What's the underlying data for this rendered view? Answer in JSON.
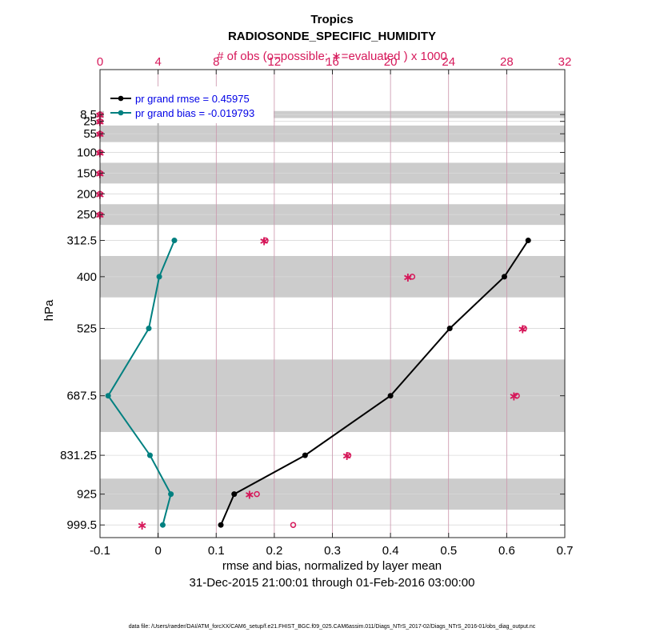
{
  "chart_data": {
    "type": "line",
    "title": "Tropics",
    "subtitle": "RADIOSONDE_SPECIFIC_HUMIDITY",
    "top_axis_label": "# of obs (o=possible; ∗=evaluated ) x 1000",
    "xlabel": "rmse and bias, normalized by layer mean",
    "date_range": "31-Dec-2015 21:00:01 through 01-Feb-2016 03:00:00",
    "ylabel": "hPa",
    "footer": "data file: /Users/raeder/DAI/ATM_forcXX/CAM6_setup/f.e21.FHIST_BGC.f09_025.CAM6assim.011/Diags_NTrS_2017-02/Diags_NTrS_2016-01/obs_diag_output.nc",
    "xlim": [
      -0.1,
      0.7
    ],
    "xticks": [
      -0.1,
      0,
      0.1,
      0.2,
      0.3,
      0.4,
      0.5,
      0.6,
      0.7
    ],
    "xtick_labels": [
      "-0.1",
      "0",
      "0.1",
      "0.2",
      "0.3",
      "0.4",
      "0.5",
      "0.6",
      "0.7"
    ],
    "top_xlim": [
      0,
      32
    ],
    "top_xticks": [
      0,
      4,
      8,
      12,
      16,
      20,
      24,
      28,
      32
    ],
    "top_xtick_labels": [
      "0",
      "4",
      "8",
      "12",
      "16",
      "20",
      "24",
      "28",
      "32"
    ],
    "ylim": [
      1030,
      -100
    ],
    "levels": [
      8.5,
      25,
      55,
      100,
      150,
      200,
      250,
      312.5,
      400,
      525,
      687.5,
      831.25,
      925,
      999.5
    ],
    "level_labels": [
      "8.5",
      "25",
      "55",
      "100",
      "150",
      "200",
      "250",
      "312.5",
      "400",
      "525",
      "687.5",
      "831.25",
      "925",
      "999.5"
    ],
    "shaded_bands": [
      [
        0,
        17
      ],
      [
        35,
        75
      ],
      [
        125,
        175
      ],
      [
        225,
        275
      ],
      [
        350,
        450
      ],
      [
        600,
        775
      ],
      [
        887.5,
        962.5
      ]
    ],
    "series": [
      {
        "name": "pr grand rmse = 0.45975",
        "color": "#000000",
        "points": [
          [
            0.637,
            312.5
          ],
          [
            0.596,
            400
          ],
          [
            0.502,
            525
          ],
          [
            0.4,
            687.5
          ],
          [
            0.253,
            831.25
          ],
          [
            0.131,
            925
          ],
          [
            0.108,
            999.5
          ]
        ]
      },
      {
        "name": "pr grand bias = -0.019793",
        "color": "#008080",
        "points": [
          [
            0.028,
            312.5
          ],
          [
            0.002,
            400
          ],
          [
            -0.016,
            525
          ],
          [
            -0.086,
            687.5
          ],
          [
            -0.014,
            831.25
          ],
          [
            0.022,
            925
          ],
          [
            0.008,
            999.5
          ]
        ]
      }
    ],
    "obs_possible": [
      [
        0,
        8.5
      ],
      [
        0,
        25
      ],
      [
        0,
        55
      ],
      [
        0,
        100
      ],
      [
        0,
        150
      ],
      [
        0,
        200
      ],
      [
        0,
        250
      ],
      [
        11.4,
        312.5
      ],
      [
        21.5,
        400
      ],
      [
        29.2,
        525
      ],
      [
        28.7,
        687.5
      ],
      [
        17.1,
        831.25
      ],
      [
        10.8,
        925
      ],
      [
        13.3,
        999.5
      ]
    ],
    "obs_evaluated": [
      [
        0,
        8.5
      ],
      [
        0,
        25
      ],
      [
        0,
        55
      ],
      [
        0,
        100
      ],
      [
        0,
        150
      ],
      [
        0,
        200
      ],
      [
        0,
        250
      ],
      [
        11.3,
        312.5
      ],
      [
        21.2,
        400
      ],
      [
        29.1,
        525
      ],
      [
        28.5,
        687.5
      ],
      [
        17.0,
        831.25
      ],
      [
        10.3,
        925
      ],
      [
        2.9,
        999.5
      ]
    ],
    "legend_placement": "top-left",
    "grid": true,
    "colors": {
      "obs": "#d6185a",
      "grid": "#d9d9d9",
      "top_grid": "#c36a8e",
      "band": "#cccccc",
      "zero_line": "#b3b3b3",
      "legend_text": "#0000e6"
    }
  }
}
